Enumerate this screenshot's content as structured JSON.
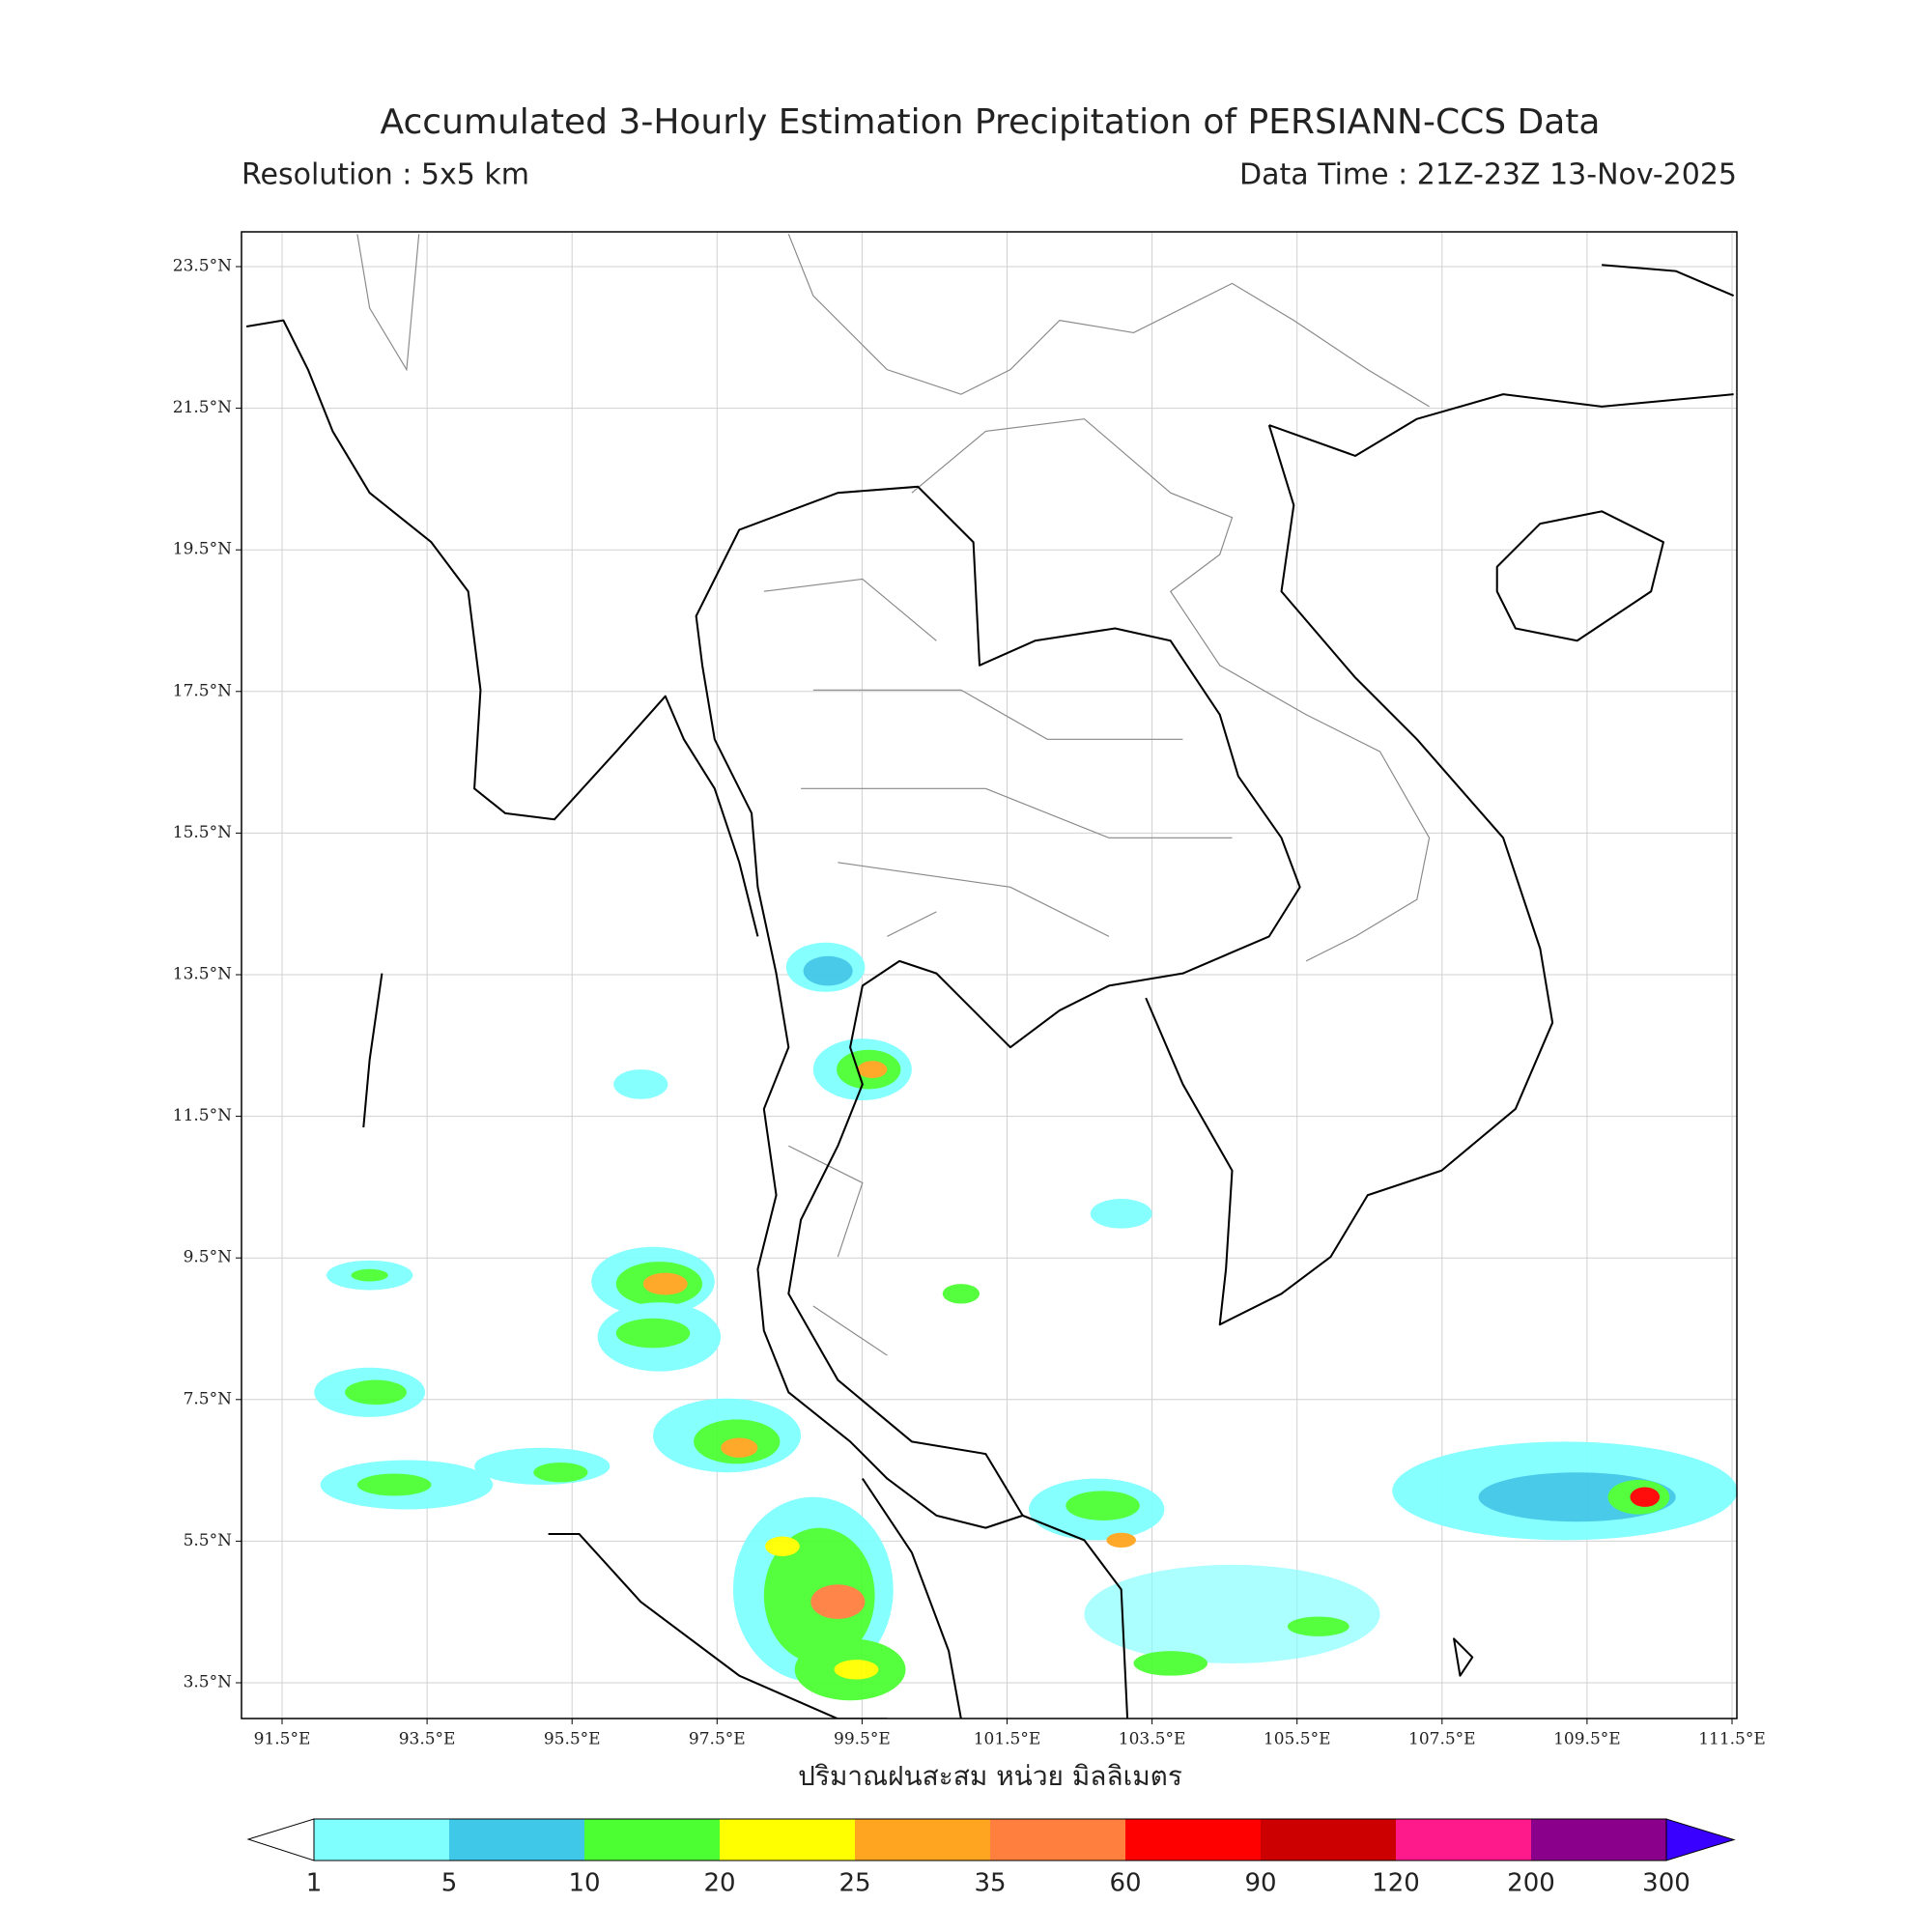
{
  "header": {
    "title": "Accumulated 3-Hourly Estimation Precipitation of PERSIANN-CCS Data",
    "resolution": "Resolution : 5x5 km",
    "data_time": "Data Time : 21Z-23Z 13-Nov-2025"
  },
  "map": {
    "lat_ticks": [
      "23.5°N",
      "21.5°N",
      "19.5°N",
      "17.5°N",
      "15.5°N",
      "13.5°N",
      "11.5°N",
      "9.5°N",
      "7.5°N",
      "5.5°N",
      "3.5°N"
    ],
    "lon_ticks": [
      "91.5°E",
      "93.5°E",
      "95.5°E",
      "97.5°E",
      "99.5°E",
      "101.5°E",
      "103.5°E",
      "105.5°E",
      "107.5°E",
      "109.5°E",
      "111.5°E"
    ]
  },
  "colorbar": {
    "label": "ปริมาณฝนสะสม หน่วย มิลลิเมตร",
    "levels": [
      1,
      5,
      10,
      20,
      25,
      35,
      60,
      90,
      120,
      200,
      300
    ],
    "colors": [
      "#80ffff",
      "#40c8e8",
      "#4cff33",
      "#ffff00",
      "#ffa520",
      "#ff7f3f",
      "#ff0000",
      "#cc0000",
      "#ff1a8c",
      "#8b008b",
      "#3a00ff"
    ]
  }
}
